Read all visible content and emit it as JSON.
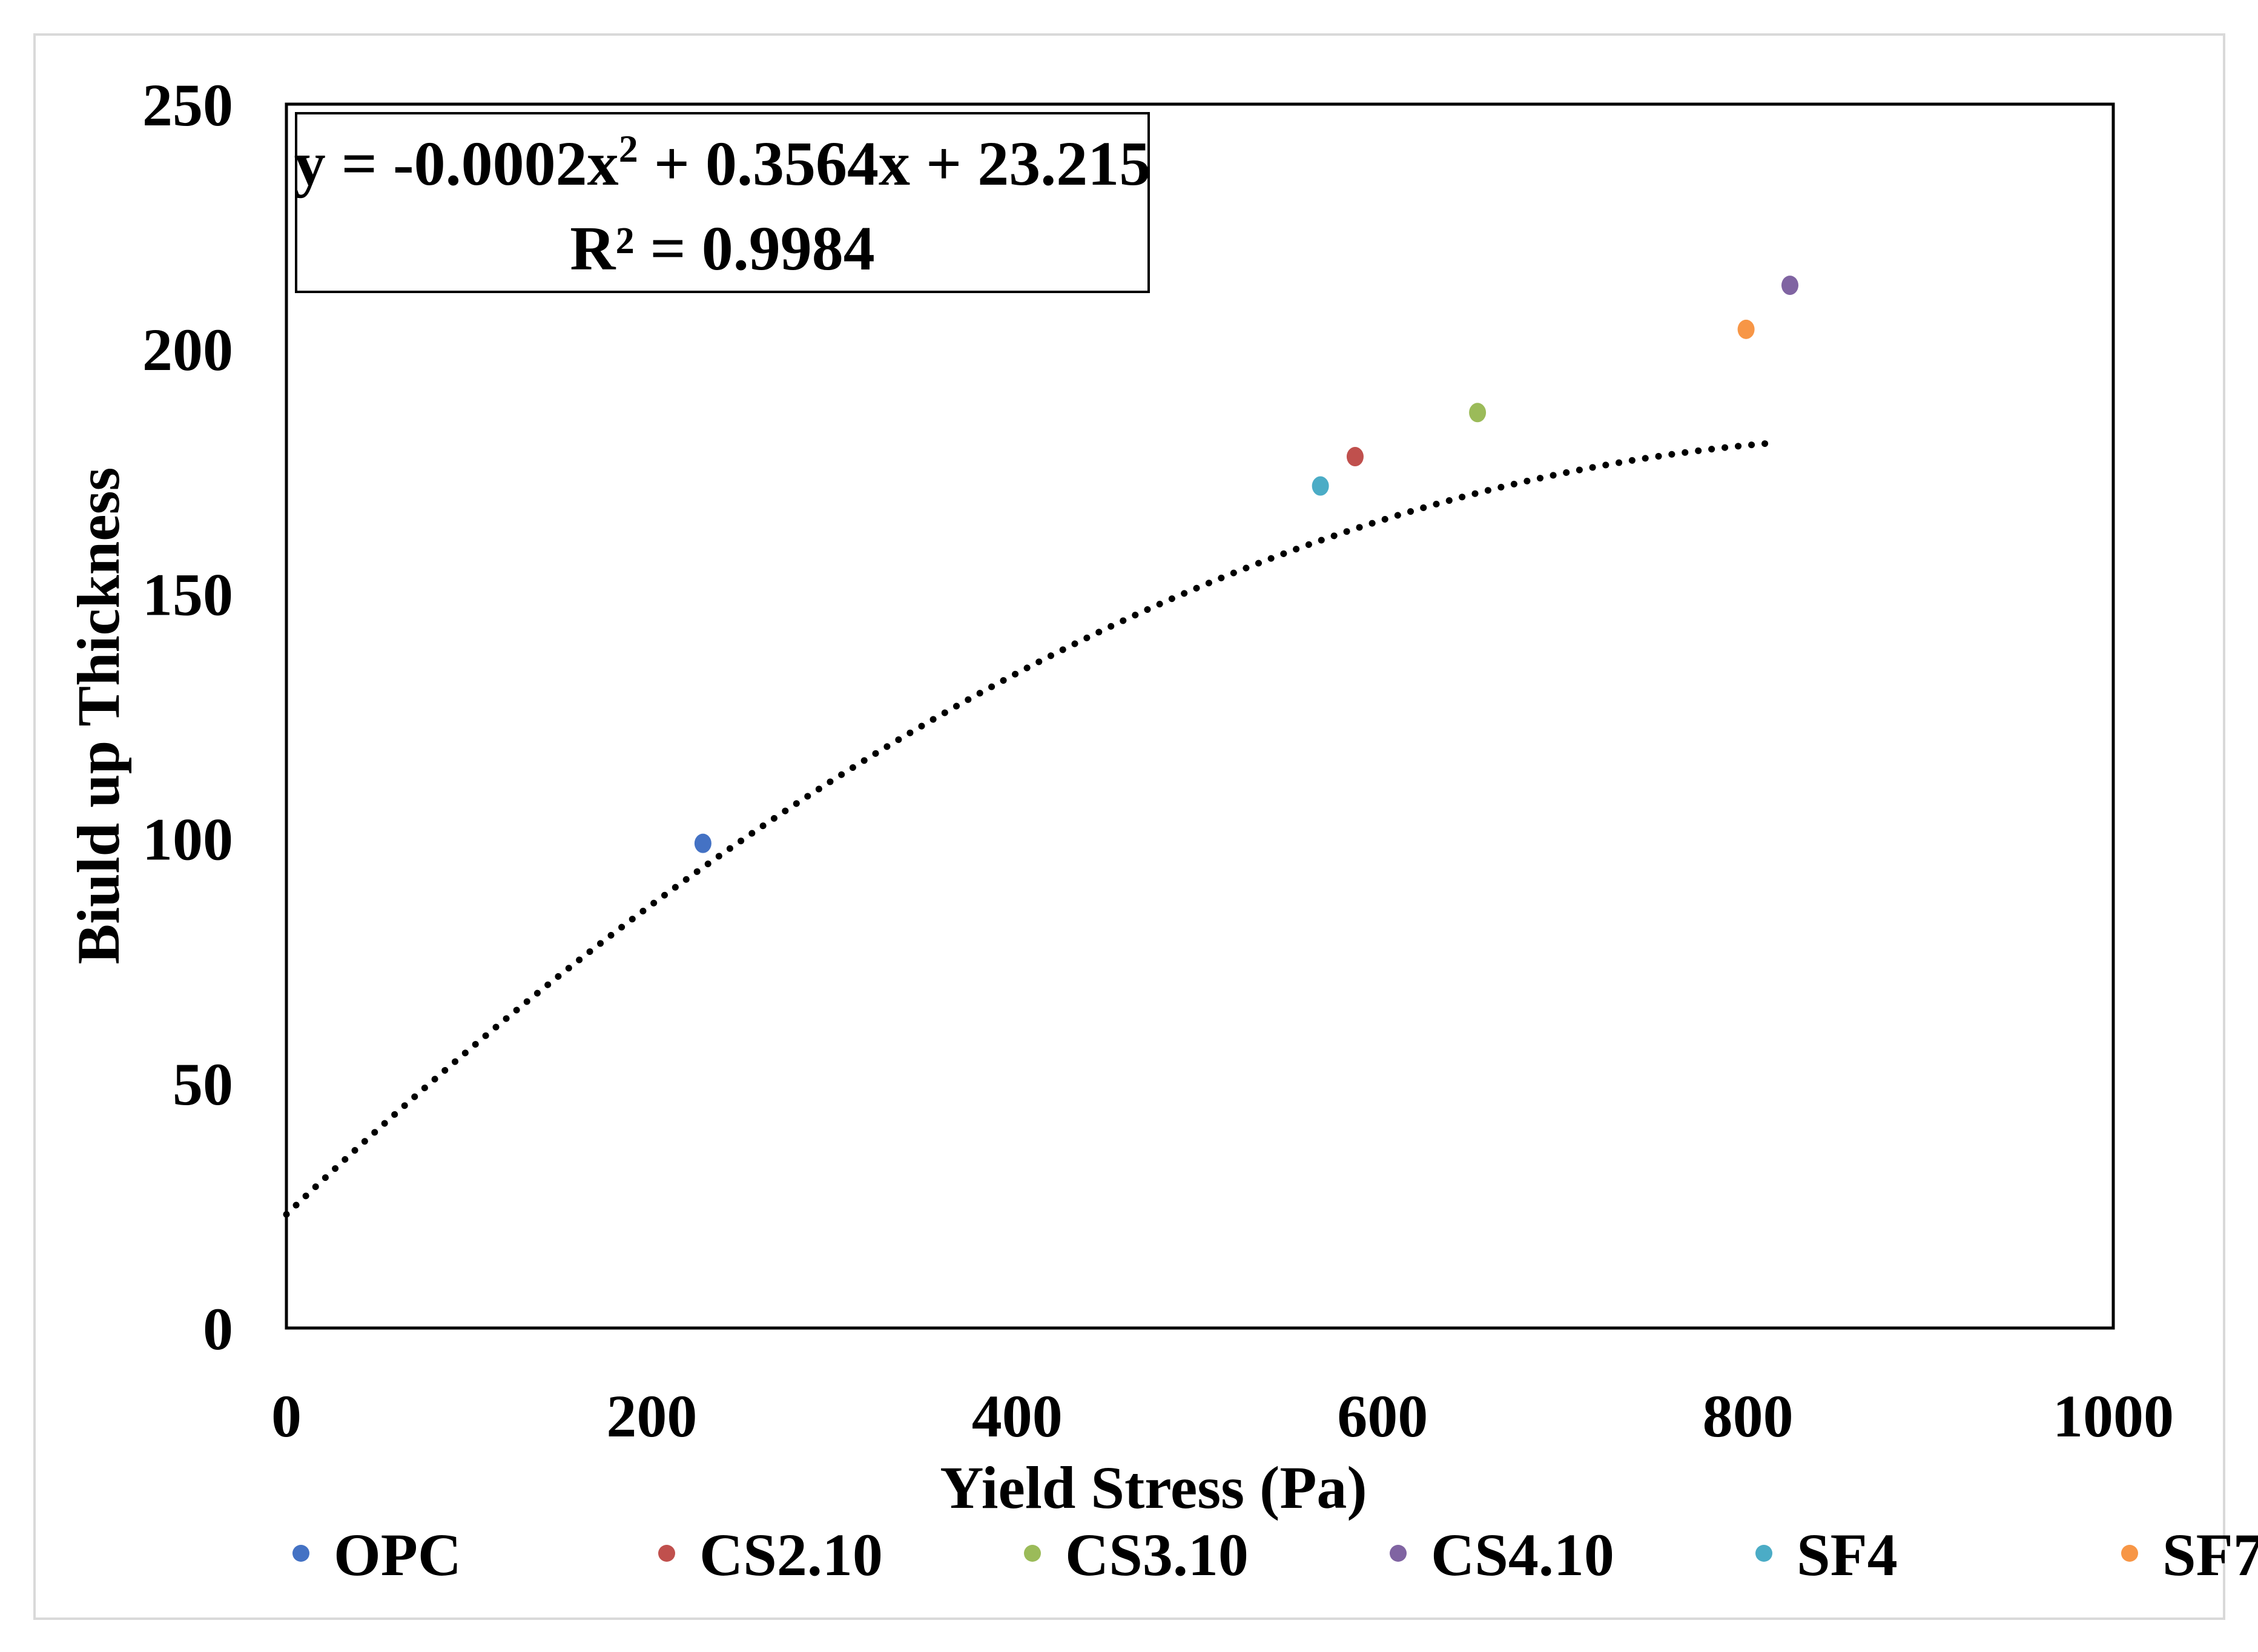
{
  "chart_data": {
    "type": "scatter",
    "title": "",
    "xlabel": "Yield Stress (Pa)",
    "ylabel": "Biuld up Thickness",
    "xlim": [
      0,
      1000
    ],
    "ylim": [
      0,
      250
    ],
    "xticks": [
      0,
      200,
      400,
      600,
      800,
      1000
    ],
    "yticks": [
      0,
      50,
      100,
      150,
      200,
      250
    ],
    "grid": false,
    "legend_position": "bottom",
    "series": [
      {
        "name": "OPC",
        "color": "#4472C4",
        "x": [
          228
        ],
        "y": [
          99
        ]
      },
      {
        "name": "CS2.10",
        "color": "#C0504D",
        "x": [
          585
        ],
        "y": [
          178
        ]
      },
      {
        "name": "CS3.10",
        "color": "#9BBB59",
        "x": [
          652
        ],
        "y": [
          187
        ]
      },
      {
        "name": "CS4.10",
        "color": "#8064A2",
        "x": [
          823
        ],
        "y": [
          213
        ]
      },
      {
        "name": "SF4",
        "color": "#4BACC6",
        "x": [
          566
        ],
        "y": [
          172
        ]
      },
      {
        "name": "SF7",
        "color": "#F79646",
        "x": [
          799
        ],
        "y": [
          204
        ]
      }
    ],
    "trendline": {
      "type": "polynomial",
      "order": 2,
      "coefficients": [
        -0.0002,
        0.3564,
        23.215
      ],
      "x_range": [
        0,
        815
      ],
      "color": "#000000",
      "style": "dotted"
    },
    "annotation": {
      "equation_prefix": "y = -0.0002x",
      "equation_superscript": "2",
      "equation_suffix": " + 0.3564x + 23.215",
      "r_squared": "R² = 0.9984"
    }
  }
}
